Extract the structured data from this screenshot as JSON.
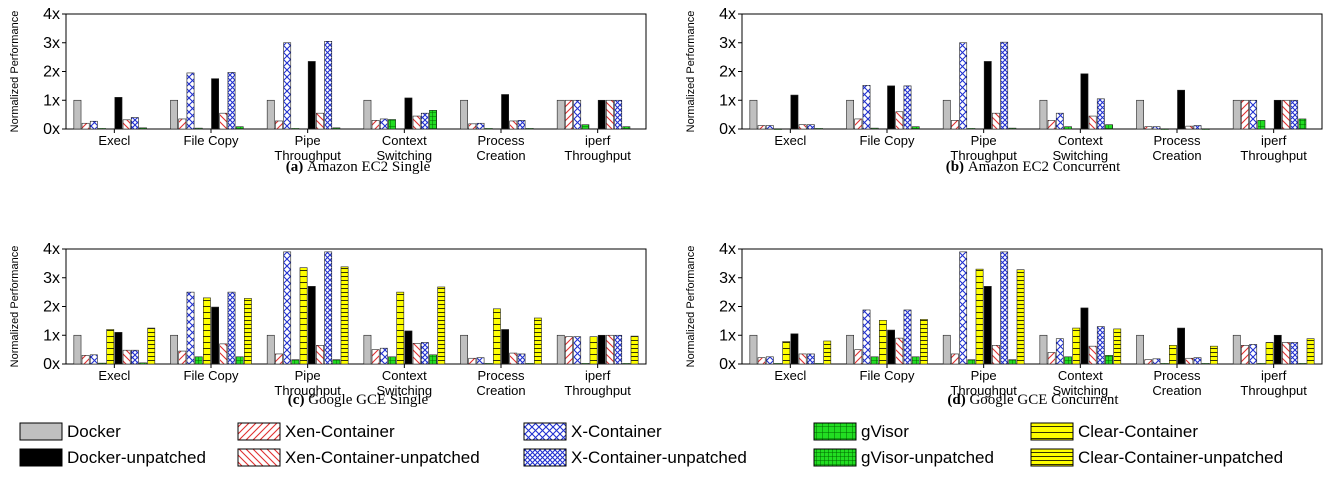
{
  "legend": [
    {
      "key": "docker",
      "label": "Docker",
      "fill": "#c0c0c0",
      "pattern": "solid"
    },
    {
      "key": "xen",
      "label": "Xen-Container",
      "fill": "#ffffff",
      "pattern": "diag-red"
    },
    {
      "key": "x",
      "label": "X-Container",
      "fill": "#ffffff",
      "pattern": "cross-blue"
    },
    {
      "key": "gvisor",
      "label": "gVisor",
      "fill": "#22dd22",
      "pattern": "grid-green"
    },
    {
      "key": "clear",
      "label": "Clear-Container",
      "fill": "#ffff00",
      "pattern": "hlines-yellow"
    },
    {
      "key": "docker_u",
      "label": "Docker-unpatched",
      "fill": "#000000",
      "pattern": "solid"
    },
    {
      "key": "xen_u",
      "label": "Xen-Container-unpatched",
      "fill": "#ffffff",
      "pattern": "diag-red-u"
    },
    {
      "key": "x_u",
      "label": "X-Container-unpatched",
      "fill": "#ffffff",
      "pattern": "cross-blue-u"
    },
    {
      "key": "gvisor_u",
      "label": "gVisor-unpatched",
      "fill": "#22dd22",
      "pattern": "grid-green-u"
    },
    {
      "key": "clear_u",
      "label": "Clear-Container-unpatched",
      "fill": "#ffff00",
      "pattern": "hlines-yellow-u"
    }
  ],
  "series_order": [
    "docker",
    "xen",
    "x",
    "gvisor",
    "clear",
    "docker_u",
    "xen_u",
    "x_u",
    "gvisor_u",
    "clear_u"
  ],
  "chart_data": [
    {
      "panel": "a",
      "type": "bar",
      "caption_label": "(a)",
      "caption_text": "Amazon EC2 Single",
      "ylabel": "Normalized Performance",
      "yticks": [
        "0x",
        "1x",
        "2x",
        "3x",
        "4x"
      ],
      "ylim": [
        0,
        4
      ],
      "categories": [
        "Execl",
        "File Copy",
        "Pipe\nThroughput",
        "Context\nSwitching",
        "Process\nCreation",
        "iperf\nThroughput"
      ],
      "series": [
        {
          "key": "docker",
          "values": [
            1,
            1,
            1,
            1,
            1,
            1
          ]
        },
        {
          "key": "xen",
          "values": [
            0.2,
            0.35,
            0.28,
            0.3,
            0.18,
            1.0
          ]
        },
        {
          "key": "x",
          "values": [
            0.27,
            1.95,
            3.0,
            0.35,
            0.2,
            1.0
          ]
        },
        {
          "key": "gvisor",
          "values": [
            0.02,
            0.03,
            0.02,
            0.33,
            0.02,
            0.15
          ]
        },
        {
          "key": "clear",
          "values": [
            null,
            null,
            null,
            null,
            null,
            null
          ]
        },
        {
          "key": "docker_u",
          "values": [
            1.1,
            1.75,
            2.35,
            1.08,
            1.2,
            1.0
          ]
        },
        {
          "key": "xen_u",
          "values": [
            0.32,
            0.55,
            0.55,
            0.45,
            0.28,
            1.0
          ]
        },
        {
          "key": "x_u",
          "values": [
            0.4,
            1.97,
            3.05,
            0.55,
            0.3,
            1.0
          ]
        },
        {
          "key": "gvisor_u",
          "values": [
            0.04,
            0.08,
            0.04,
            0.65,
            0.02,
            0.08
          ]
        },
        {
          "key": "clear_u",
          "values": [
            null,
            null,
            null,
            null,
            null,
            null
          ]
        }
      ]
    },
    {
      "panel": "b",
      "type": "bar",
      "caption_label": "(b)",
      "caption_text": "Amazon EC2 Concurrent",
      "ylabel": "Normalized Performance",
      "yticks": [
        "0x",
        "1x",
        "2x",
        "3x",
        "4x"
      ],
      "ylim": [
        0,
        4
      ],
      "categories": [
        "Execl",
        "File Copy",
        "Pipe\nThroughput",
        "Context\nSwitching",
        "Process\nCreation",
        "iperf\nThroughput"
      ],
      "series": [
        {
          "key": "docker",
          "values": [
            1,
            1,
            1,
            1,
            1,
            1
          ]
        },
        {
          "key": "xen",
          "values": [
            0.12,
            0.35,
            0.3,
            0.3,
            0.08,
            1.0
          ]
        },
        {
          "key": "x",
          "values": [
            0.12,
            1.52,
            3.0,
            0.55,
            0.08,
            1.0
          ]
        },
        {
          "key": "gvisor",
          "values": [
            0.01,
            0.03,
            0.02,
            0.08,
            0.01,
            0.3
          ]
        },
        {
          "key": "clear",
          "values": [
            null,
            null,
            null,
            null,
            null,
            null
          ]
        },
        {
          "key": "docker_u",
          "values": [
            1.18,
            1.5,
            2.35,
            1.92,
            1.35,
            1.0
          ]
        },
        {
          "key": "xen_u",
          "values": [
            0.15,
            0.6,
            0.55,
            0.45,
            0.1,
            1.0
          ]
        },
        {
          "key": "x_u",
          "values": [
            0.15,
            1.5,
            3.02,
            1.05,
            0.12,
            1.0
          ]
        },
        {
          "key": "gvisor_u",
          "values": [
            0.02,
            0.08,
            0.03,
            0.15,
            0.01,
            0.35
          ]
        },
        {
          "key": "clear_u",
          "values": [
            null,
            null,
            null,
            null,
            null,
            null
          ]
        }
      ]
    },
    {
      "panel": "c",
      "type": "bar",
      "caption_label": "(c)",
      "caption_text": "Google GCE Single",
      "ylabel": "Normalized Performance",
      "yticks": [
        "0x",
        "1x",
        "2x",
        "3x",
        "4x"
      ],
      "ylim": [
        0,
        4
      ],
      "categories": [
        "Execl",
        "File Copy",
        "Pipe\nThroughput",
        "Context\nSwitching",
        "Process\nCreation",
        "iperf\nThroughput"
      ],
      "series": [
        {
          "key": "docker",
          "values": [
            1,
            1,
            1,
            1,
            1,
            1
          ]
        },
        {
          "key": "xen",
          "values": [
            0.3,
            0.45,
            0.35,
            0.5,
            0.2,
            0.95
          ]
        },
        {
          "key": "x",
          "values": [
            0.32,
            2.5,
            3.9,
            0.55,
            0.22,
            0.95
          ]
        },
        {
          "key": "gvisor",
          "values": [
            0.03,
            0.25,
            0.15,
            0.25,
            0.02,
            0.02
          ]
        },
        {
          "key": "clear",
          "values": [
            1.2,
            2.3,
            3.35,
            2.5,
            1.92,
            0.95
          ]
        },
        {
          "key": "docker_u",
          "values": [
            1.1,
            1.98,
            2.7,
            1.15,
            1.2,
            1.0
          ]
        },
        {
          "key": "xen_u",
          "values": [
            0.48,
            0.7,
            0.65,
            0.72,
            0.38,
            1.0
          ]
        },
        {
          "key": "x_u",
          "values": [
            0.48,
            2.5,
            3.9,
            0.75,
            0.35,
            1.0
          ]
        },
        {
          "key": "gvisor_u",
          "values": [
            0.04,
            0.25,
            0.15,
            0.32,
            0.02,
            0.02
          ]
        },
        {
          "key": "clear_u",
          "values": [
            1.25,
            2.28,
            3.38,
            2.68,
            1.6,
            0.97
          ]
        }
      ]
    },
    {
      "panel": "d",
      "type": "bar",
      "caption_label": "(d)",
      "caption_text": "Google GCE Concurrent",
      "ylabel": "Normalized Performance",
      "yticks": [
        "0x",
        "1x",
        "2x",
        "3x",
        "4x"
      ],
      "ylim": [
        0,
        4
      ],
      "categories": [
        "Execl",
        "File Copy",
        "Pipe\nThroughput",
        "Context\nSwitching",
        "Process\nCreation",
        "iperf\nThroughput"
      ],
      "series": [
        {
          "key": "docker",
          "values": [
            1,
            1,
            1,
            1,
            1,
            1
          ]
        },
        {
          "key": "xen",
          "values": [
            0.22,
            0.5,
            0.35,
            0.4,
            0.15,
            0.65
          ]
        },
        {
          "key": "x",
          "values": [
            0.25,
            1.88,
            3.9,
            0.88,
            0.18,
            0.68
          ]
        },
        {
          "key": "gvisor",
          "values": [
            0.02,
            0.25,
            0.15,
            0.25,
            0.02,
            0.02
          ]
        },
        {
          "key": "clear",
          "values": [
            0.78,
            1.52,
            3.3,
            1.25,
            0.65,
            0.75
          ]
        },
        {
          "key": "docker_u",
          "values": [
            1.05,
            1.18,
            2.7,
            1.95,
            1.25,
            1.0
          ]
        },
        {
          "key": "xen_u",
          "values": [
            0.35,
            0.9,
            0.65,
            0.62,
            0.2,
            0.75
          ]
        },
        {
          "key": "x_u",
          "values": [
            0.35,
            1.88,
            3.9,
            1.3,
            0.22,
            0.75
          ]
        },
        {
          "key": "gvisor_u",
          "values": [
            0.02,
            0.25,
            0.15,
            0.3,
            0.02,
            0.02
          ]
        },
        {
          "key": "clear_u",
          "values": [
            0.8,
            1.55,
            3.28,
            1.22,
            0.62,
            0.88
          ]
        }
      ]
    }
  ]
}
